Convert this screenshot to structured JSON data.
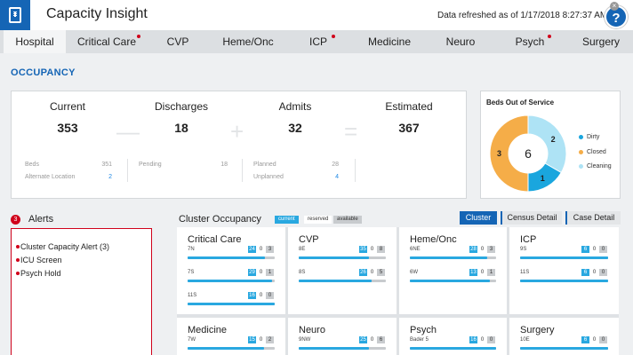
{
  "app": {
    "title": "Capacity Insight",
    "refreshed": "Data refreshed as of  1/17/2018 8:27:37 AM",
    "help": "?",
    "close": "×"
  },
  "tabs": [
    {
      "label": "Hospital",
      "active": true,
      "alert": false
    },
    {
      "label": "Critical Care",
      "active": false,
      "alert": true
    },
    {
      "label": "CVP",
      "active": false,
      "alert": false
    },
    {
      "label": "Heme/Onc",
      "active": false,
      "alert": false
    },
    {
      "label": "ICP",
      "active": false,
      "alert": true
    },
    {
      "label": "Medicine",
      "active": false,
      "alert": false
    },
    {
      "label": "Neuro",
      "active": false,
      "alert": false
    },
    {
      "label": "Psych",
      "active": false,
      "alert": true
    },
    {
      "label": "Surgery",
      "active": false,
      "alert": false
    }
  ],
  "occupancy": {
    "title": "OCCUPANCY",
    "stats": [
      {
        "label": "Current",
        "value": "353"
      },
      {
        "label": "Discharges",
        "value": "18"
      },
      {
        "label": "Admits",
        "value": "32"
      },
      {
        "label": "Estimated",
        "value": "367"
      }
    ],
    "operators": [
      "—",
      "+",
      "="
    ],
    "details": {
      "beds_label": "Beds",
      "beds_value": "351",
      "alt_label": "Alternate Location",
      "alt_value": "2",
      "pending_label": "Pending",
      "pending_value": "18",
      "planned_label": "Planned",
      "planned_value": "28",
      "unplanned_label": "Unplanned",
      "unplanned_value": "4"
    }
  },
  "beds_out": {
    "title": "Beds Out of Service",
    "total": "6",
    "slices": [
      {
        "name": "Dirty",
        "value": 1,
        "color": "#1aa6de"
      },
      {
        "name": "Closed",
        "value": 3,
        "color": "#f5ad48"
      },
      {
        "name": "Cleaning",
        "value": 2,
        "color": "#aee3f5"
      }
    ]
  },
  "alerts": {
    "count": "3",
    "title": "Alerts",
    "items": [
      "Cluster Capacity Alert (3)",
      "ICU Screen",
      "Psych Hold"
    ]
  },
  "cluster": {
    "title": "Cluster Occupancy",
    "legend": {
      "current": "current",
      "reserved": "reserved",
      "available": "available"
    },
    "buttons": {
      "cluster": "Cluster",
      "census": "Census Detail",
      "case": "Case Detail"
    },
    "cards": [
      {
        "title": "Critical Care",
        "units": [
          {
            "name": "7N",
            "current": "24",
            "reserved": "0",
            "available": "3",
            "fill": 0.89
          },
          {
            "name": "7S",
            "current": "29",
            "reserved": "0",
            "available": "1",
            "fill": 0.97
          },
          {
            "name": "11S",
            "current": "16",
            "reserved": "0",
            "available": "0",
            "fill": 1.0
          }
        ]
      },
      {
        "title": "CVP",
        "units": [
          {
            "name": "8E",
            "current": "35",
            "reserved": "0",
            "available": "8",
            "fill": 0.81
          },
          {
            "name": "8S",
            "current": "26",
            "reserved": "0",
            "available": "5",
            "fill": 0.84
          }
        ]
      },
      {
        "title": "Heme/Onc",
        "units": [
          {
            "name": "6NE",
            "current": "28",
            "reserved": "0",
            "available": "3",
            "fill": 0.9
          },
          {
            "name": "6W",
            "current": "13",
            "reserved": "0",
            "available": "1",
            "fill": 0.93
          }
        ]
      },
      {
        "title": "ICP",
        "units": [
          {
            "name": "9S",
            "current": "6",
            "reserved": "0",
            "available": "0",
            "fill": 1.0
          },
          {
            "name": "11S",
            "current": "6",
            "reserved": "0",
            "available": "0",
            "fill": 1.0
          }
        ]
      },
      {
        "title": "Medicine",
        "units": [
          {
            "name": "7W",
            "current": "15",
            "reserved": "0",
            "available": "2",
            "fill": 0.88
          }
        ]
      },
      {
        "title": "Neuro",
        "units": [
          {
            "name": "9NW",
            "current": "25",
            "reserved": "0",
            "available": "6",
            "fill": 0.81
          }
        ]
      },
      {
        "title": "Psych",
        "units": [
          {
            "name": "Bader 5",
            "current": "16",
            "reserved": "0",
            "available": "0",
            "fill": 1.0
          }
        ]
      },
      {
        "title": "Surgery",
        "units": [
          {
            "name": "10E",
            "current": "6",
            "reserved": "0",
            "available": "0",
            "fill": 1.0
          }
        ]
      }
    ]
  }
}
